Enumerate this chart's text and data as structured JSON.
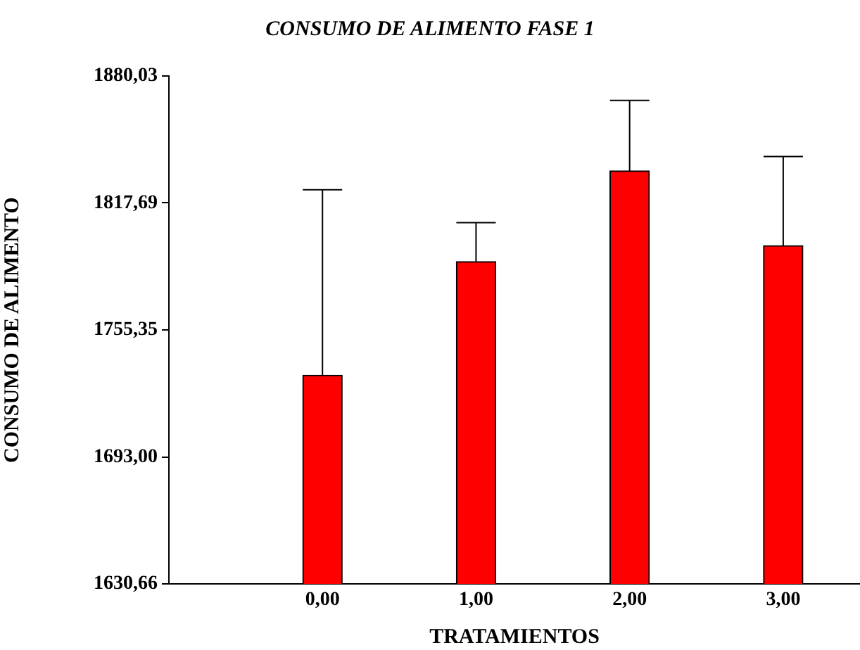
{
  "chart_data": {
    "type": "bar",
    "title": "CONSUMO DE ALIMENTO FASE 1",
    "xlabel": "TRATAMIENTOS",
    "ylabel": "CONSUMO DE ALIMENTO",
    "x": [
      0,
      1,
      2,
      3
    ],
    "xlim": [
      -1,
      3.5
    ],
    "xticks": [
      {
        "value": 0,
        "label": "0,00"
      },
      {
        "value": 1,
        "label": "1,00"
      },
      {
        "value": 2,
        "label": "2,00"
      },
      {
        "value": 3,
        "label": "3,00"
      }
    ],
    "values": [
      1733.1,
      1788.9,
      1833.4,
      1796.7
    ],
    "color": "#ff0000",
    "errors": [
      [
        1733.1,
        1824.2
      ],
      [
        1788.9,
        1808.0
      ],
      [
        1833.4,
        1868.0
      ],
      [
        1796.7,
        1840.5
      ]
    ],
    "ylim": [
      1630.66,
      1880.03
    ],
    "yticks": [
      {
        "value": 1630.66,
        "label": "1630,66"
      },
      {
        "value": 1693.0,
        "label": "1693,00"
      },
      {
        "value": 1755.35,
        "label": "1755,35"
      },
      {
        "value": 1817.69,
        "label": "1817,69"
      },
      {
        "value": 1880.03,
        "label": "1880,03"
      }
    ],
    "grid": false,
    "legend": false
  }
}
